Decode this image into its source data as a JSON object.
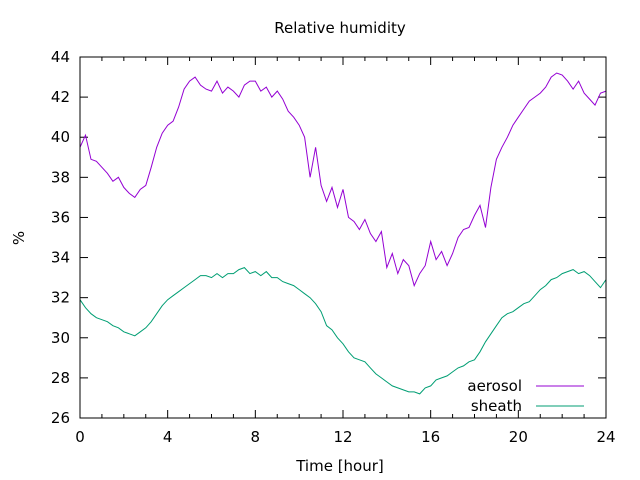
{
  "chart_data": {
    "type": "line",
    "title": "Relative humidity",
    "xlabel": "Time [hour]",
    "ylabel": "%",
    "xlim": [
      0,
      24
    ],
    "ylim": [
      26,
      44
    ],
    "xticks": [
      0,
      4,
      8,
      12,
      16,
      20,
      24
    ],
    "yticks": [
      26,
      28,
      30,
      32,
      34,
      36,
      38,
      40,
      42,
      44
    ],
    "grid": false,
    "legend_position": "bottom-right",
    "series": [
      {
        "name": "aerosol",
        "color": "#9400d3",
        "x": [
          0,
          0.25,
          0.5,
          0.75,
          1,
          1.25,
          1.5,
          1.75,
          2,
          2.25,
          2.5,
          2.75,
          3,
          3.25,
          3.5,
          3.75,
          4,
          4.25,
          4.5,
          4.75,
          5,
          5.25,
          5.5,
          5.75,
          6,
          6.25,
          6.5,
          6.75,
          7,
          7.25,
          7.5,
          7.75,
          8,
          8.25,
          8.5,
          8.75,
          9,
          9.25,
          9.5,
          9.75,
          10,
          10.25,
          10.5,
          10.75,
          11,
          11.25,
          11.5,
          11.75,
          12,
          12.25,
          12.5,
          12.75,
          13,
          13.25,
          13.5,
          13.75,
          14,
          14.25,
          14.5,
          14.75,
          15,
          15.25,
          15.5,
          15.75,
          16,
          16.25,
          16.5,
          16.75,
          17,
          17.25,
          17.5,
          17.75,
          18,
          18.25,
          18.5,
          18.75,
          19,
          19.25,
          19.5,
          19.75,
          20,
          20.25,
          20.5,
          20.75,
          21,
          21.25,
          21.5,
          21.75,
          22,
          22.25,
          22.5,
          22.75,
          23,
          23.25,
          23.5,
          23.75,
          24
        ],
        "y": [
          39.5,
          40.1,
          38.9,
          38.8,
          38.5,
          38.2,
          37.8,
          38.0,
          37.5,
          37.2,
          37.0,
          37.4,
          37.6,
          38.5,
          39.5,
          40.2,
          40.6,
          40.8,
          41.5,
          42.4,
          42.8,
          43.0,
          42.6,
          42.4,
          42.3,
          42.8,
          42.2,
          42.5,
          42.3,
          42.0,
          42.6,
          42.8,
          42.8,
          42.3,
          42.5,
          42.0,
          42.3,
          41.9,
          41.3,
          41.0,
          40.6,
          40.0,
          38.0,
          39.5,
          37.6,
          36.8,
          37.5,
          36.5,
          37.4,
          36.0,
          35.8,
          35.4,
          35.9,
          35.2,
          34.8,
          35.3,
          33.5,
          34.2,
          33.2,
          33.9,
          33.6,
          32.6,
          33.2,
          33.6,
          34.8,
          33.9,
          34.3,
          33.6,
          34.2,
          35.0,
          35.4,
          35.5,
          36.1,
          36.6,
          35.5,
          37.5,
          38.9,
          39.5,
          40.0,
          40.6,
          41.0,
          41.4,
          41.8,
          42.0,
          42.2,
          42.5,
          43.0,
          43.2,
          43.1,
          42.8,
          42.4,
          42.8,
          42.2,
          41.9,
          41.6,
          42.2,
          42.3
        ]
      },
      {
        "name": "sheath",
        "color": "#009e73",
        "x": [
          0,
          0.25,
          0.5,
          0.75,
          1,
          1.25,
          1.5,
          1.75,
          2,
          2.25,
          2.5,
          2.75,
          3,
          3.25,
          3.5,
          3.75,
          4,
          4.25,
          4.5,
          4.75,
          5,
          5.25,
          5.5,
          5.75,
          6,
          6.25,
          6.5,
          6.75,
          7,
          7.25,
          7.5,
          7.75,
          8,
          8.25,
          8.5,
          8.75,
          9,
          9.25,
          9.5,
          9.75,
          10,
          10.25,
          10.5,
          10.75,
          11,
          11.25,
          11.5,
          11.75,
          12,
          12.25,
          12.5,
          12.75,
          13,
          13.25,
          13.5,
          13.75,
          14,
          14.25,
          14.5,
          14.75,
          15,
          15.25,
          15.5,
          15.75,
          16,
          16.25,
          16.5,
          16.75,
          17,
          17.25,
          17.5,
          17.75,
          18,
          18.25,
          18.5,
          18.75,
          19,
          19.25,
          19.5,
          19.75,
          20,
          20.25,
          20.5,
          20.75,
          21,
          21.25,
          21.5,
          21.75,
          22,
          22.25,
          22.5,
          22.75,
          23,
          23.25,
          23.5,
          23.75,
          24
        ],
        "y": [
          31.9,
          31.5,
          31.2,
          31.0,
          30.9,
          30.8,
          30.6,
          30.5,
          30.3,
          30.2,
          30.1,
          30.3,
          30.5,
          30.8,
          31.2,
          31.6,
          31.9,
          32.1,
          32.3,
          32.5,
          32.7,
          32.9,
          33.1,
          33.1,
          33.0,
          33.2,
          33.0,
          33.2,
          33.2,
          33.4,
          33.5,
          33.2,
          33.3,
          33.1,
          33.3,
          33.0,
          33.0,
          32.8,
          32.7,
          32.6,
          32.4,
          32.2,
          32.0,
          31.7,
          31.3,
          30.6,
          30.4,
          30.0,
          29.7,
          29.3,
          29.0,
          28.9,
          28.8,
          28.5,
          28.2,
          28.0,
          27.8,
          27.6,
          27.5,
          27.4,
          27.3,
          27.3,
          27.2,
          27.5,
          27.6,
          27.9,
          28.0,
          28.1,
          28.3,
          28.5,
          28.6,
          28.8,
          28.9,
          29.3,
          29.8,
          30.2,
          30.6,
          31.0,
          31.2,
          31.3,
          31.5,
          31.7,
          31.8,
          32.1,
          32.4,
          32.6,
          32.9,
          33.0,
          33.2,
          33.3,
          33.4,
          33.2,
          33.3,
          33.1,
          32.8,
          32.5,
          32.9
        ]
      }
    ]
  }
}
